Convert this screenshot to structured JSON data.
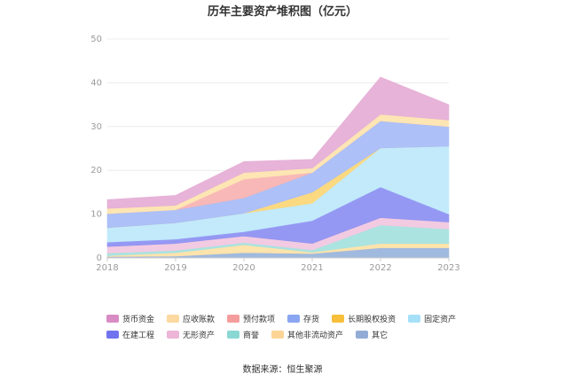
{
  "chart_data": {
    "type": "area",
    "stacked": true,
    "title": "历年主要资产堆积图（亿元）",
    "x": [
      "2018",
      "2019",
      "2020",
      "2021",
      "2022",
      "2023"
    ],
    "ylim": [
      0,
      50
    ],
    "yticks": [
      0,
      10,
      20,
      30,
      40,
      50
    ],
    "grid": true,
    "legend_position": "bottom",
    "series": [
      {
        "name": "其它",
        "color": "#9bb5dc",
        "values": [
          0.3,
          0.4,
          1.2,
          1.0,
          2.3,
          2.3
        ]
      },
      {
        "name": "其他非流动资产",
        "color": "#fde2a8",
        "values": [
          0.2,
          0.8,
          1.8,
          0.3,
          1.0,
          1.0
        ]
      },
      {
        "name": "商誉",
        "color": "#a7e2df",
        "values": [
          0.6,
          0.5,
          0.5,
          0.5,
          4.2,
          3.3
        ]
      },
      {
        "name": "无形资产",
        "color": "#f1c8e0",
        "values": [
          1.5,
          1.6,
          1.5,
          1.5,
          1.7,
          1.6
        ]
      },
      {
        "name": "在建工程",
        "color": "#8f92f2",
        "values": [
          1.0,
          1.0,
          1.0,
          5.2,
          7.0,
          1.8
        ]
      },
      {
        "name": "固定资产",
        "color": "#bfe9fb",
        "values": [
          3.3,
          3.7,
          4.2,
          4.0,
          8.9,
          15.5
        ]
      },
      {
        "name": "长期股权投资",
        "color": "#fbd77a",
        "values": [
          0.0,
          0.0,
          0.0,
          2.5,
          0.0,
          0.0
        ]
      },
      {
        "name": "存货",
        "color": "#a9bdf7",
        "values": [
          3.2,
          3.0,
          3.5,
          4.5,
          6.2,
          4.5
        ]
      },
      {
        "name": "预付款项",
        "color": "#f8b4b4",
        "values": [
          0.0,
          0.0,
          4.3,
          0.0,
          0.0,
          0.0
        ]
      },
      {
        "name": "应收账款",
        "color": "#fde4b0",
        "values": [
          1.2,
          1.0,
          1.5,
          1.0,
          1.5,
          1.5
        ]
      },
      {
        "name": "货币资金",
        "color": "#e6afd6",
        "values": [
          2.0,
          2.3,
          2.5,
          2.0,
          8.5,
          3.5
        ]
      }
    ]
  },
  "legend": [
    {
      "label": "货币资金",
      "color": "#d98cc4"
    },
    {
      "label": "应收账款",
      "color": "#fcd9a0"
    },
    {
      "label": "预付款项",
      "color": "#f59d9d"
    },
    {
      "label": "存货",
      "color": "#8aa6f2"
    },
    {
      "label": "长期股权投资",
      "color": "#f7bf3a"
    },
    {
      "label": "固定资产",
      "color": "#a6e0f8"
    },
    {
      "label": "在建工程",
      "color": "#7173ee"
    },
    {
      "label": "无形资产",
      "color": "#edb6d8"
    },
    {
      "label": "商誉",
      "color": "#8ad8d4"
    },
    {
      "label": "其他非流动资产",
      "color": "#fdd496"
    },
    {
      "label": "其它",
      "color": "#93acd6"
    }
  ],
  "source_text": "数据来源：恒生聚源"
}
